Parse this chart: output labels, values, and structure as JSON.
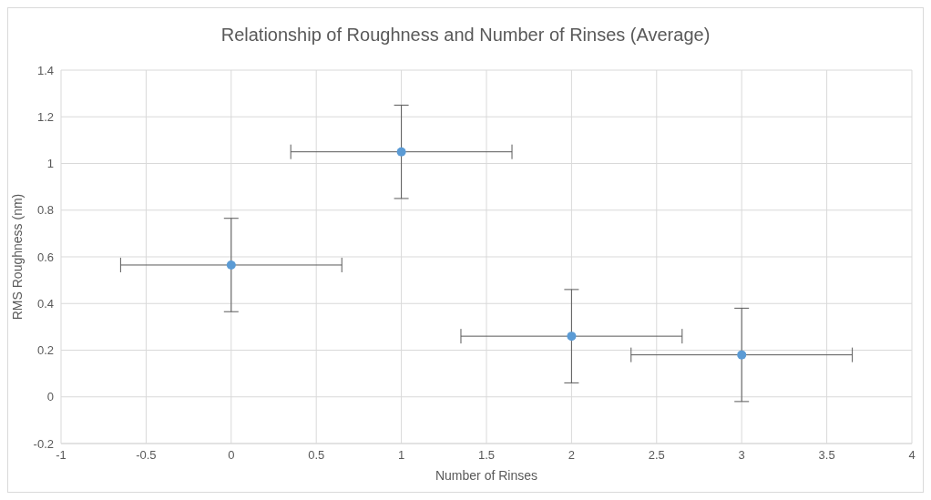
{
  "chart_data": {
    "type": "scatter",
    "title": "Relationship of Roughness and Number of Rinses (Average)",
    "xlabel": "Number of Rinses",
    "ylabel": "RMS Roughness (nm)",
    "x": [
      0,
      1,
      2,
      3
    ],
    "values": [
      0.565,
      1.05,
      0.26,
      0.18
    ],
    "errors": [
      0.2,
      0.2,
      0.2,
      0.2
    ],
    "xerrors": [
      0.65,
      0.65,
      0.65,
      0.65
    ],
    "color": "#5b9bd5",
    "xlim": [
      -1,
      4
    ],
    "xticks": [
      -1,
      -0.5,
      0,
      0.5,
      1,
      1.5,
      2,
      2.5,
      3,
      3.5,
      4
    ],
    "ylim": [
      -0.2,
      1.4
    ],
    "yticks": [
      -0.2,
      0,
      0.2,
      0.4,
      0.6,
      0.8,
      1,
      1.2,
      1.4
    ],
    "grid": true,
    "marker": "circle",
    "legend": false
  }
}
